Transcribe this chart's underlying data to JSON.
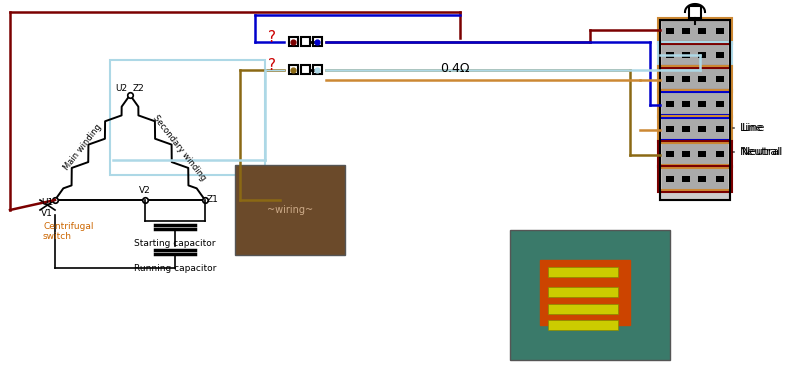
{
  "bg_color": "#ffffff",
  "dark_red": "#7B0000",
  "blue": "#0000cc",
  "light_blue": "#add8e6",
  "brown": "#8B6914",
  "orange_brown": "#cc8833",
  "black": "#000000",
  "light_gray": "#cccccc",
  "med_gray": "#aaaaaa",
  "question_color": "#cc0000",
  "centrifugal_color": "#cc6600",
  "resistance_label": "0.4Ω",
  "line_label": "Line",
  "neutral_label": "Neutral",
  "centrifugal_label": "Centrifugal\nswitch",
  "starting_cap_label": "Starting capacitor",
  "running_cap_label": "Running capacitor",
  "main_winding_label": "Main winding",
  "secondary_winding_label": "Secondary winding"
}
